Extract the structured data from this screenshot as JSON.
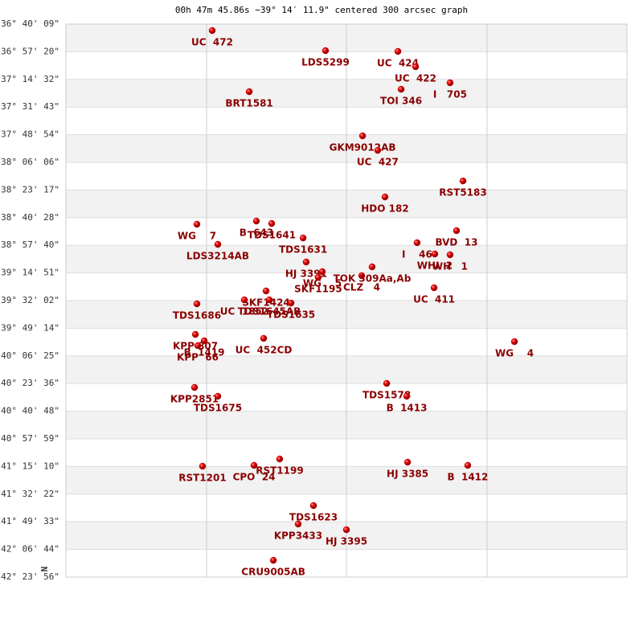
{
  "chart_data": {
    "type": "scatter",
    "title": "00h 47m 45.86s −39° 14′ 11.9\" centered 300 arcsec graph",
    "north_label": "N",
    "color": "#cc0000",
    "xlim": [
      0,
      4
    ],
    "ylim": [
      -36.6692,
      -42.3989
    ],
    "yticks": [
      {
        "value": -36.6692,
        "label": "-36° 40' 09\""
      },
      {
        "value": -36.9556,
        "label": "-36° 57' 20\""
      },
      {
        "value": -37.2422,
        "label": "-37° 14' 32\""
      },
      {
        "value": -37.5286,
        "label": "-37° 31' 43\""
      },
      {
        "value": -37.815,
        "label": "-37° 48' 54\""
      },
      {
        "value": -38.1017,
        "label": "-38° 06' 06\""
      },
      {
        "value": -38.3881,
        "label": "-38° 23' 17\""
      },
      {
        "value": -38.6744,
        "label": "-38° 40' 28\""
      },
      {
        "value": -38.9611,
        "label": "-38° 57' 40\""
      },
      {
        "value": -39.2475,
        "label": "-39° 14' 51\""
      },
      {
        "value": -39.5339,
        "label": "-39° 32' 02\""
      },
      {
        "value": -39.8206,
        "label": "-39° 49' 14\""
      },
      {
        "value": -40.1069,
        "label": "-40° 06' 25\""
      },
      {
        "value": -40.3933,
        "label": "-40° 23' 36\""
      },
      {
        "value": -40.68,
        "label": "-40° 40' 48\""
      },
      {
        "value": -40.9664,
        "label": "-40° 57' 59\""
      },
      {
        "value": -41.2528,
        "label": "-41° 15' 10\""
      },
      {
        "value": -41.5394,
        "label": "-41° 32' 22\""
      },
      {
        "value": -41.8258,
        "label": "-41° 49' 33\""
      },
      {
        "value": -42.1122,
        "label": "-42° 06' 44\""
      },
      {
        "value": -42.3989,
        "label": "-42° 23' 56\""
      }
    ],
    "labels": [
      "UC  472",
      "LDS5299",
      "UC  424",
      "UC  422",
      "I   705",
      "TOI 346",
      "BRT1581",
      "GKM9012AB",
      "UC  427",
      "RST5183",
      "HDO 182",
      "WG    7",
      "B  643",
      "TDS1641",
      "TDS1631",
      "LDS3214AB",
      "I    46",
      "BVD  13",
      "WHI  2",
      "WH   1",
      "HJ 3391",
      "WG    5",
      "CLZ   4",
      "TOK 309Aa,Ab",
      "SKF1195",
      "UC  411",
      "SKF1424",
      "UC  1852",
      "TDS1645AB",
      "TDS1635",
      "TDS1686",
      "KPP 807",
      "B  1419",
      "KPP  66",
      "UC  452CD",
      "WG    4",
      "TDS1578",
      "B  1413",
      "KPP2851",
      "TDS1675",
      "RST1199",
      "RST1201",
      "CPO  24",
      "HJ 3385",
      "B  1412",
      "TDS1623",
      "KPP3433",
      "HJ 3395",
      "CRU9005AB"
    ],
    "x": [
      1.043,
      1.851,
      2.367,
      2.493,
      2.739,
      2.39,
      1.307,
      2.115,
      2.223,
      2.831,
      2.275,
      0.934,
      1.358,
      1.467,
      1.691,
      1.083,
      2.504,
      2.785,
      2.63,
      2.739,
      1.713,
      1.828,
      2.109,
      2.183,
      1.799,
      2.625,
      1.427,
      1.272,
      1.45,
      1.605,
      0.934,
      0.923,
      0.986,
      0.94,
      1.41,
      3.198,
      2.287,
      2.43,
      0.917,
      1.083,
      1.524,
      0.974,
      1.341,
      2.436,
      2.865,
      1.765,
      1.656,
      2.0,
      1.479
    ],
    "values": [
      -36.736,
      -36.944,
      -36.952,
      -37.111,
      -37.277,
      -37.344,
      -37.369,
      -37.827,
      -37.977,
      -38.294,
      -38.46,
      -38.743,
      -38.71,
      -38.735,
      -38.885,
      -38.951,
      -38.934,
      -38.809,
      -39.051,
      -39.059,
      -39.134,
      -39.234,
      -39.276,
      -39.184,
      -39.293,
      -39.401,
      -39.434,
      -39.526,
      -39.526,
      -39.559,
      -39.567,
      -39.884,
      -39.95,
      -40.0,
      -39.925,
      -39.959,
      -40.392,
      -40.525,
      -40.434,
      -40.525,
      -41.175,
      -41.25,
      -41.241,
      -41.208,
      -41.241,
      -41.658,
      -41.849,
      -41.908,
      -42.225
    ]
  }
}
